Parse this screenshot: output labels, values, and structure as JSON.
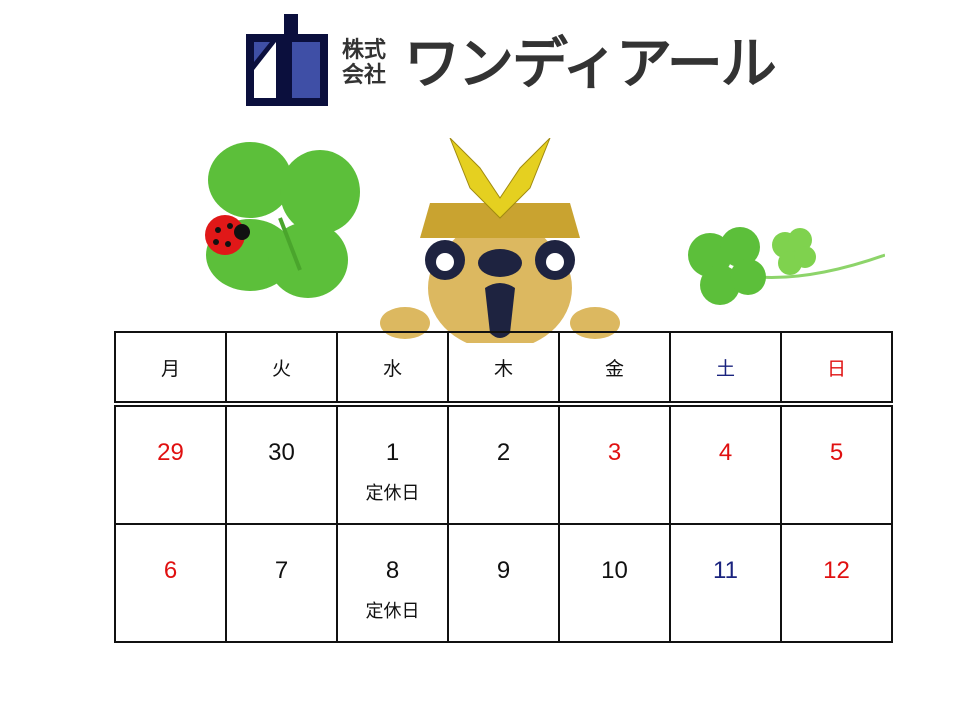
{
  "logo": {
    "company_prefix": "株式会社",
    "company_name": "ワンディアール",
    "mark_colors": [
      "#0b0f3d",
      "#3f4fa6"
    ]
  },
  "calendar": {
    "weekdays": [
      {
        "label": "月",
        "color": "black"
      },
      {
        "label": "火",
        "color": "black"
      },
      {
        "label": "水",
        "color": "black"
      },
      {
        "label": "木",
        "color": "black"
      },
      {
        "label": "金",
        "color": "black"
      },
      {
        "label": "土",
        "color": "blue"
      },
      {
        "label": "日",
        "color": "red"
      }
    ],
    "weeks": [
      [
        {
          "day": "29",
          "color": "red"
        },
        {
          "day": "30",
          "color": "black"
        },
        {
          "day": "1",
          "color": "black",
          "note": "定休日"
        },
        {
          "day": "2",
          "color": "black"
        },
        {
          "day": "3",
          "color": "red"
        },
        {
          "day": "4",
          "color": "red"
        },
        {
          "day": "5",
          "color": "red"
        }
      ],
      [
        {
          "day": "6",
          "color": "red"
        },
        {
          "day": "7",
          "color": "black"
        },
        {
          "day": "8",
          "color": "black",
          "note": "定休日"
        },
        {
          "day": "9",
          "color": "black"
        },
        {
          "day": "10",
          "color": "black"
        },
        {
          "day": "11",
          "color": "blue"
        },
        {
          "day": "12",
          "color": "red"
        }
      ]
    ],
    "colors": {
      "red": "#e01010",
      "blue": "#1a237e",
      "black": "#111111"
    }
  }
}
